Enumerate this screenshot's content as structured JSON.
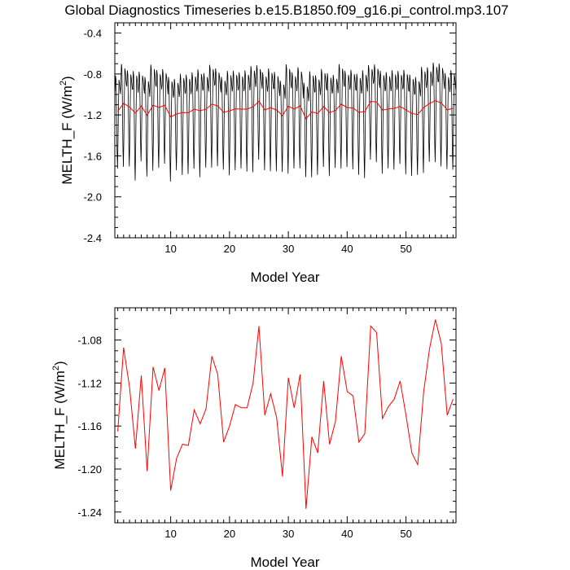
{
  "title": "Global Diagnostics Timeseries b.e15.B1850.f09_g16.pi_control.mp3.107",
  "chart_data": [
    {
      "type": "line",
      "xlabel": "Model Year",
      "ylabel_main": "MELTH_F (W/m",
      "ylabel_sup": "2",
      "ylabel_end": ")",
      "xlim": [
        0.5,
        58.5
      ],
      "ylim": [
        -2.4,
        -0.3
      ],
      "xticks": [
        10,
        20,
        30,
        40,
        50
      ],
      "xtick_labels": [
        "10",
        "20",
        "30",
        "40",
        "50"
      ],
      "yticks": [
        -0.4,
        -0.8,
        -1.2,
        -1.6,
        -2.0,
        -2.4
      ],
      "ytick_labels": [
        "-0.4",
        "-0.8",
        "-1.2",
        "-1.6",
        "-2.0",
        "-2.4"
      ],
      "series": [
        {
          "color": "#000000",
          "monthly_amplitude": [
            0.56,
            0.62,
            0.58,
            0.66,
            0.54,
            0.6,
            0.64,
            0.59,
            0.57,
            0.63,
            0.55,
            0.61,
            0.6,
            0.58,
            0.65,
            0.57,
            0.62,
            0.59,
            0.56,
            0.63,
            0.6,
            0.58,
            0.61,
            0.64,
            0.57,
            0.59,
            0.62,
            0.6,
            0.55,
            0.66,
            0.58,
            0.61,
            0.57,
            0.64,
            0.6,
            0.59,
            0.62,
            0.56,
            0.63,
            0.58,
            0.6,
            0.61,
            0.65,
            0.57,
            0.59,
            0.62,
            0.58,
            0.6,
            0.56,
            0.63,
            0.61,
            0.59,
            0.64,
            0.57,
            0.6,
            0.62,
            0.58,
            0.6
          ]
        },
        {
          "color": "#ff0000",
          "x": [
            1,
            2,
            3,
            4,
            5,
            6,
            7,
            8,
            9,
            10,
            11,
            12,
            13,
            14,
            15,
            16,
            17,
            18,
            19,
            20,
            21,
            22,
            23,
            24,
            25,
            26,
            27,
            28,
            29,
            30,
            31,
            32,
            33,
            34,
            35,
            36,
            37,
            38,
            39,
            40,
            41,
            42,
            43,
            44,
            45,
            46,
            47,
            48,
            49,
            50,
            51,
            52,
            53,
            54,
            55,
            56,
            57,
            58
          ],
          "values": [
            -1.165,
            -1.087,
            -1.124,
            -1.181,
            -1.113,
            -1.202,
            -1.105,
            -1.127,
            -1.106,
            -1.22,
            -1.19,
            -1.177,
            -1.178,
            -1.145,
            -1.158,
            -1.144,
            -1.095,
            -1.112,
            -1.175,
            -1.16,
            -1.14,
            -1.143,
            -1.143,
            -1.12,
            -1.067,
            -1.15,
            -1.13,
            -1.152,
            -1.207,
            -1.115,
            -1.143,
            -1.112,
            -1.237,
            -1.17,
            -1.185,
            -1.118,
            -1.177,
            -1.156,
            -1.095,
            -1.128,
            -1.132,
            -1.175,
            -1.167,
            -1.067,
            -1.073,
            -1.153,
            -1.142,
            -1.135,
            -1.118,
            -1.15,
            -1.185,
            -1.196,
            -1.128,
            -1.088,
            -1.061,
            -1.083,
            -1.15,
            -1.135
          ]
        }
      ]
    },
    {
      "type": "line",
      "xlabel": "Model Year",
      "ylabel_main": "MELTH_F (W/m",
      "ylabel_sup": "2",
      "ylabel_end": ")",
      "xlim": [
        0.5,
        58.5
      ],
      "ylim": [
        -1.25,
        -1.05
      ],
      "xticks": [
        10,
        20,
        30,
        40,
        50
      ],
      "xtick_labels": [
        "10",
        "20",
        "30",
        "40",
        "50"
      ],
      "yticks": [
        -1.08,
        -1.12,
        -1.16,
        -1.2,
        -1.24
      ],
      "ytick_labels": [
        "-1.08",
        "-1.12",
        "-1.16",
        "-1.20",
        "-1.24"
      ],
      "series": [
        {
          "color": "#ff0000",
          "x": [
            1,
            2,
            3,
            4,
            5,
            6,
            7,
            8,
            9,
            10,
            11,
            12,
            13,
            14,
            15,
            16,
            17,
            18,
            19,
            20,
            21,
            22,
            23,
            24,
            25,
            26,
            27,
            28,
            29,
            30,
            31,
            32,
            33,
            34,
            35,
            36,
            37,
            38,
            39,
            40,
            41,
            42,
            43,
            44,
            45,
            46,
            47,
            48,
            49,
            50,
            51,
            52,
            53,
            54,
            55,
            56,
            57,
            58
          ],
          "values": [
            -1.165,
            -1.087,
            -1.124,
            -1.181,
            -1.113,
            -1.202,
            -1.105,
            -1.127,
            -1.106,
            -1.22,
            -1.19,
            -1.177,
            -1.178,
            -1.145,
            -1.158,
            -1.144,
            -1.095,
            -1.112,
            -1.175,
            -1.16,
            -1.14,
            -1.143,
            -1.143,
            -1.12,
            -1.067,
            -1.15,
            -1.13,
            -1.152,
            -1.207,
            -1.115,
            -1.143,
            -1.112,
            -1.237,
            -1.17,
            -1.185,
            -1.118,
            -1.177,
            -1.156,
            -1.095,
            -1.128,
            -1.132,
            -1.175,
            -1.167,
            -1.067,
            -1.073,
            -1.153,
            -1.142,
            -1.135,
            -1.118,
            -1.15,
            -1.185,
            -1.196,
            -1.128,
            -1.088,
            -1.061,
            -1.083,
            -1.15,
            -1.135
          ]
        }
      ]
    }
  ]
}
